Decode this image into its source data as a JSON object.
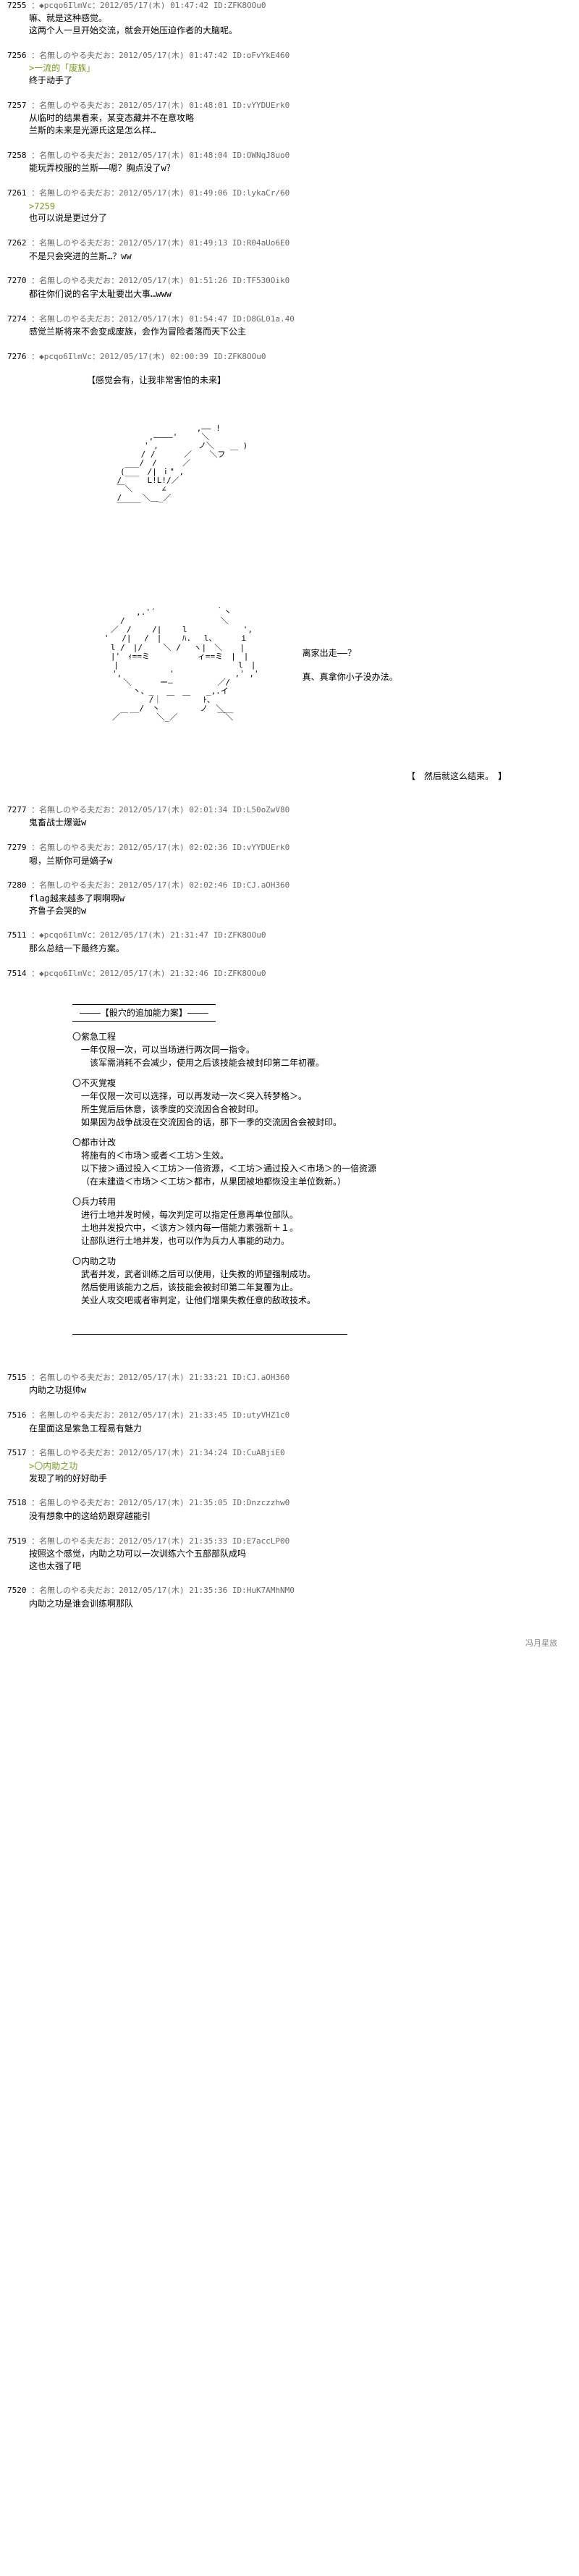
{
  "posts": [
    {
      "num": "7255",
      "user": "◆pcqo6IlmVc",
      "date": "2012/05/17(木) 01:47:42",
      "id": "ID:ZFK8OOu0",
      "body": "嘛、就是这种感觉。\n这两个人一旦开始交流，就会开始压迫作者的大脑呢。"
    },
    {
      "num": "7256",
      "user": "名無しのやる夫だお",
      "date": "2012/05/17(木) 01:47:42",
      "id": "ID:oFvYkE460",
      "body": "<q>>一流的「废族」</q>\n终于动手了"
    },
    {
      "num": "7257",
      "user": "名無しのやる夫だお",
      "date": "2012/05/17(木) 01:48:01",
      "id": "ID:vYYDUErk0",
      "body": "从临时的结果看来，某变态藏并不在意攻略\n兰斯的未来是光源氏这是怎么样…"
    },
    {
      "num": "7258",
      "user": "名無しのやる夫だお",
      "date": "2012/05/17(木) 01:48:04",
      "id": "ID:OWNqJ8uo0",
      "body": "能玩弄校服的兰斯——嗯？胸点没了w？"
    },
    {
      "num": "7261",
      "user": "名無しのやる夫だお",
      "date": "2012/05/17(木) 01:49:06",
      "id": "ID:lykaCr/60",
      "body": "<q>>7259</q>\n也可以说是更过分了"
    },
    {
      "num": "7262",
      "user": "名無しのやる夫だお",
      "date": "2012/05/17(木) 01:49:13",
      "id": "ID:R04aUo6E0",
      "body": "不是只会突进的兰斯…？ww"
    },
    {
      "num": "7270",
      "user": "名無しのやる夫だお",
      "date": "2012/05/17(木) 01:51:26",
      "id": "ID:TF530Oik0",
      "body": "都往你们说的名字太耻要出大事…www"
    },
    {
      "num": "7274",
      "user": "名無しのやる夫だお",
      "date": "2012/05/17(木) 01:54:47",
      "id": "ID:D8GL01a.40",
      "body": "感觉兰斯将来不会变成废族，会作为冒险者落而天下公主"
    },
    {
      "num": "7276",
      "user": "◆pcqo6IlmVc",
      "date": "2012/05/17(木) 02:00:39",
      "id": "ID:ZFK8OOu0",
      "body": "",
      "aa": true
    },
    {
      "num": "7277",
      "user": "名無しのやる夫だお",
      "date": "2012/05/17(木) 02:01:34",
      "id": "ID:L50oZwV80",
      "body": "鬼畜战士爆诞w"
    },
    {
      "num": "7279",
      "user": "名無しのやる夫だお",
      "date": "2012/05/17(木) 02:02:36",
      "id": "ID:vYYDUErk0",
      "body": "嗯，兰斯你可是嫡子w"
    },
    {
      "num": "7280",
      "user": "名無しのやる夫だお",
      "date": "2012/05/17(木) 02:02:46",
      "id": "ID:CJ.aOH360",
      "body": "flag越来越多了啊啊啊w\n齐鲁子会哭的w"
    },
    {
      "num": "7511",
      "user": "◆pcqo6IlmVc",
      "date": "2012/05/17(木) 21:31:47",
      "id": "ID:ZFK8OOu0",
      "body": "那么总结一下最终方案。"
    },
    {
      "num": "7514",
      "user": "◆pcqo6IlmVc",
      "date": "2012/05/17(木) 21:32:46",
      "id": "ID:ZFK8OOu0",
      "body": "",
      "box": true
    },
    {
      "num": "7515",
      "user": "名無しのやる夫だお",
      "date": "2012/05/17(木) 21:33:21",
      "id": "ID:CJ.aOH360",
      "body": "内助之功挺帅w"
    },
    {
      "num": "7516",
      "user": "名無しのやる夫だお",
      "date": "2012/05/17(木) 21:33:45",
      "id": "ID:utyVHZ1c0",
      "body": "在里面这是紫急工程易有魅力"
    },
    {
      "num": "7517",
      "user": "名無しのやる夫だお",
      "date": "2012/05/17(木) 21:34:24",
      "id": "ID:CuABjiE0",
      "body": "<q>>〇内助之功</q>\n发现了哟的好好助手"
    },
    {
      "num": "7518",
      "user": "名無しのやる夫だお",
      "date": "2012/05/17(木) 21:35:05",
      "id": "ID:Dnzczzhw0",
      "body": "没有想象中的这给奶跟穿越能引"
    },
    {
      "num": "7519",
      "user": "名無しのやる夫だお",
      "date": "2012/05/17(木) 21:35:33",
      "id": "ID:E7accLP00",
      "body": "按照这个感觉，内助之功可以一次训练六个五部部队成吗\n这也太强了吧"
    },
    {
      "num": "7520",
      "user": "名無しのやる夫だお",
      "date": "2012/05/17(木) 21:35:36",
      "id": "ID:HuK7AMhNM0",
      "body": "内助之功是谁会训练啊那队"
    }
  ],
  "aa_caption_top": "【感觉会有，让我非常害怕的未来】",
  "aa_art1": "　　　　　　　　　　　　　　　 ,―― !\n　　　　　　　　　 ,――――'　　　＼\n　　　　　　　　　' ,　　　　　ノ＼　　　 )\n　　　　　　　　 / /　　　 ／ 　 ＼フ ￣\n　　　　　　 ___/　/　 　 ／\n　　　　　　(___　/| ｉ\" ,\n　　　　　 /　 　 L!L!/／\n　　　　　 ￣＼　　　 ∠\n　　　　　 /　　 ＼＿_／\n　　　　　 ￣￣￣",
  "aa_text1": "离家出走——？\n\n真、真拿你小子没办法。",
  "aa_art2": "　 　 　 　 　 ,.'´　　　　　　　 ｀丶\n　　　　　　/　　　　　　　　　　　　＼\n　 　 　 ／　/　　 /|　　 l 　 　 　 　 ',\n　　　　'　 /|　 /　|　　 ﾊ.　 l、　　　 i\n　 　 　 l /　|/　　 ＼ /　 ヽ|　＼ 　 |\n　 　 　 |'　ｨ==ミ　　　　　　ィ==ミ　|　|\n　　　 　 | 　 　 　 　 　 　 　 　 　 l　|\n　　　　　',　　　　　　'　　　　　　　 ,' ,'\n　 　 　 　 ＼　　　 ー―　　　　　 ／/\n　　　　　　　 丶、_　　　　　　 _,.イ\n　 　 　 　 　 　 /｜ ￣　￣　 ﾄ､\n　　　　　 　 __/　丶　　　　　ノ　＼__\n　　　　　／￣　　　 ＼_／　　　　　￣＼",
  "aa_end": "【　然后就这么结束。　】",
  "box_title": "————【骰穴的追加能力案】————",
  "box_items": [
    {
      "h": "〇紫急工程",
      "t": "一年仅限一次，可以当场进行两次同一指令。\n　该军需消耗不会减少，使用之后该技能会被封印第二年初覆。"
    },
    {
      "h": "〇不灭覚複",
      "t": "一年仅限一次可以选择，可以再发动一次＜突入转梦格＞。\n所生覚后后休意，该季度的交流因合合被封印。\n如果因为战争战没在交流因合的话，那下一季的交流因合会被封印。"
    },
    {
      "h": "〇都市计改",
      "t": "将施有的＜市场＞或者＜工坊＞生效。\n以下接＞通过投入＜工坊＞一倍资源，＜工坊＞通过投入＜市场＞的一倍资源\n（在末建造＜市场＞＜工坊＞都市，从果团被地都恢没主单位数新。）"
    },
    {
      "h": "〇兵力转用",
      "t": "进行土地并发时候，每次判定可以指定任意再单位部队。\n土地并发投穴中，＜该方＞领内每一借能力素强新＋１。\n让部队进行土地并发，也可以作为兵力人事能的动力。"
    },
    {
      "h": "〇内助之功",
      "t": "武者并发，武者训练之后可以使用，让失教的师望强制成功。\n然后使用该能力之后，该技能会被封印第二年复覆为止。\n关业人攻交吧或者审判定，让他们增果失教任意的敌政技术。"
    }
  ],
  "footer": "冯月星旅"
}
